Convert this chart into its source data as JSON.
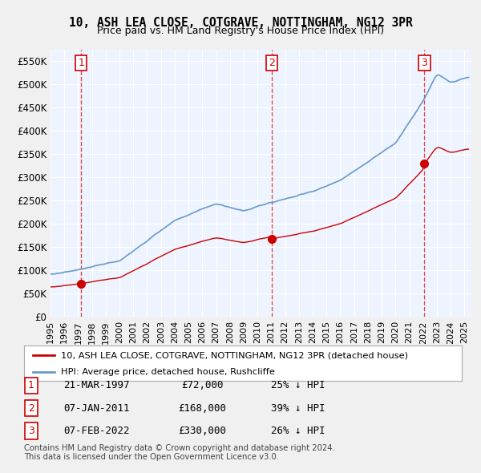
{
  "title": "10, ASH LEA CLOSE, COTGRAVE, NOTTINGHAM, NG12 3PR",
  "subtitle": "Price paid vs. HM Land Registry's House Price Index (HPI)",
  "xlabel": "",
  "ylabel": "",
  "ylim": [
    0,
    575000
  ],
  "xlim_start": 1995.0,
  "xlim_end": 2025.5,
  "sale_color": "#cc0000",
  "hpi_color": "#6699cc",
  "background_color": "#ddeeff",
  "plot_bg_color": "#eef4ff",
  "grid_color": "#ffffff",
  "sales": [
    {
      "date_num": 1997.22,
      "price": 72000,
      "label": "1"
    },
    {
      "date_num": 2011.02,
      "price": 168000,
      "label": "2"
    },
    {
      "date_num": 2022.1,
      "price": 330000,
      "label": "3"
    }
  ],
  "legend_sale_label": "10, ASH LEA CLOSE, COTGRAVE, NOTTINGHAM, NG12 3PR (detached house)",
  "legend_hpi_label": "HPI: Average price, detached house, Rushcliffe",
  "table_rows": [
    {
      "num": "1",
      "date": "21-MAR-1997",
      "price": "£72,000",
      "note": "25% ↓ HPI"
    },
    {
      "num": "2",
      "date": "07-JAN-2011",
      "price": "£168,000",
      "note": "39% ↓ HPI"
    },
    {
      "num": "3",
      "date": "07-FEB-2022",
      "price": "£330,000",
      "note": "26% ↓ HPI"
    }
  ],
  "footer": "Contains HM Land Registry data © Crown copyright and database right 2024.\nThis data is licensed under the Open Government Licence v3.0.",
  "yticks": [
    0,
    50000,
    100000,
    150000,
    200000,
    250000,
    300000,
    350000,
    400000,
    450000,
    500000,
    550000
  ],
  "ytick_labels": [
    "£0",
    "£50K",
    "£100K",
    "£150K",
    "£200K",
    "£250K",
    "£300K",
    "£350K",
    "£400K",
    "£450K",
    "£500K",
    "£550K"
  ],
  "xtick_years": [
    1995,
    1996,
    1997,
    1998,
    1999,
    2000,
    2001,
    2002,
    2003,
    2004,
    2005,
    2006,
    2007,
    2008,
    2009,
    2010,
    2011,
    2012,
    2013,
    2014,
    2015,
    2016,
    2017,
    2018,
    2019,
    2020,
    2021,
    2022,
    2023,
    2024,
    2025
  ]
}
